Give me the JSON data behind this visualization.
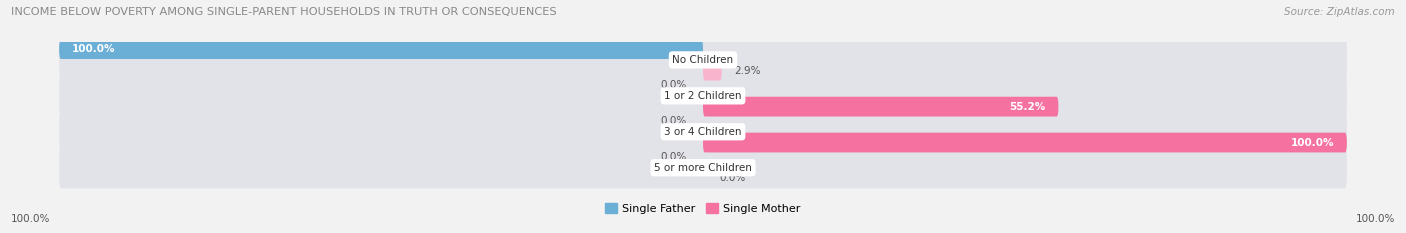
{
  "title": "INCOME BELOW POVERTY AMONG SINGLE-PARENT HOUSEHOLDS IN TRUTH OR CONSEQUENCES",
  "source": "Source: ZipAtlas.com",
  "categories": [
    "No Children",
    "1 or 2 Children",
    "3 or 4 Children",
    "5 or more Children"
  ],
  "single_father": [
    100.0,
    0.0,
    0.0,
    0.0
  ],
  "single_mother": [
    2.9,
    55.2,
    100.0,
    0.0
  ],
  "father_color": "#6BAED6",
  "mother_color": "#F471A0",
  "father_color_light": "#AED4EF",
  "mother_color_light": "#F8B4CC",
  "bg_color": "#F2F2F2",
  "bar_bg_color": "#E2E2E9",
  "max_val": 100.0,
  "legend_father": "Single Father",
  "legend_mother": "Single Mother",
  "axis_left_label": "100.0%",
  "axis_right_label": "100.0%",
  "title_color": "#888888",
  "source_color": "#999999",
  "label_color_dark": "#555555",
  "label_color_white": "#ffffff"
}
